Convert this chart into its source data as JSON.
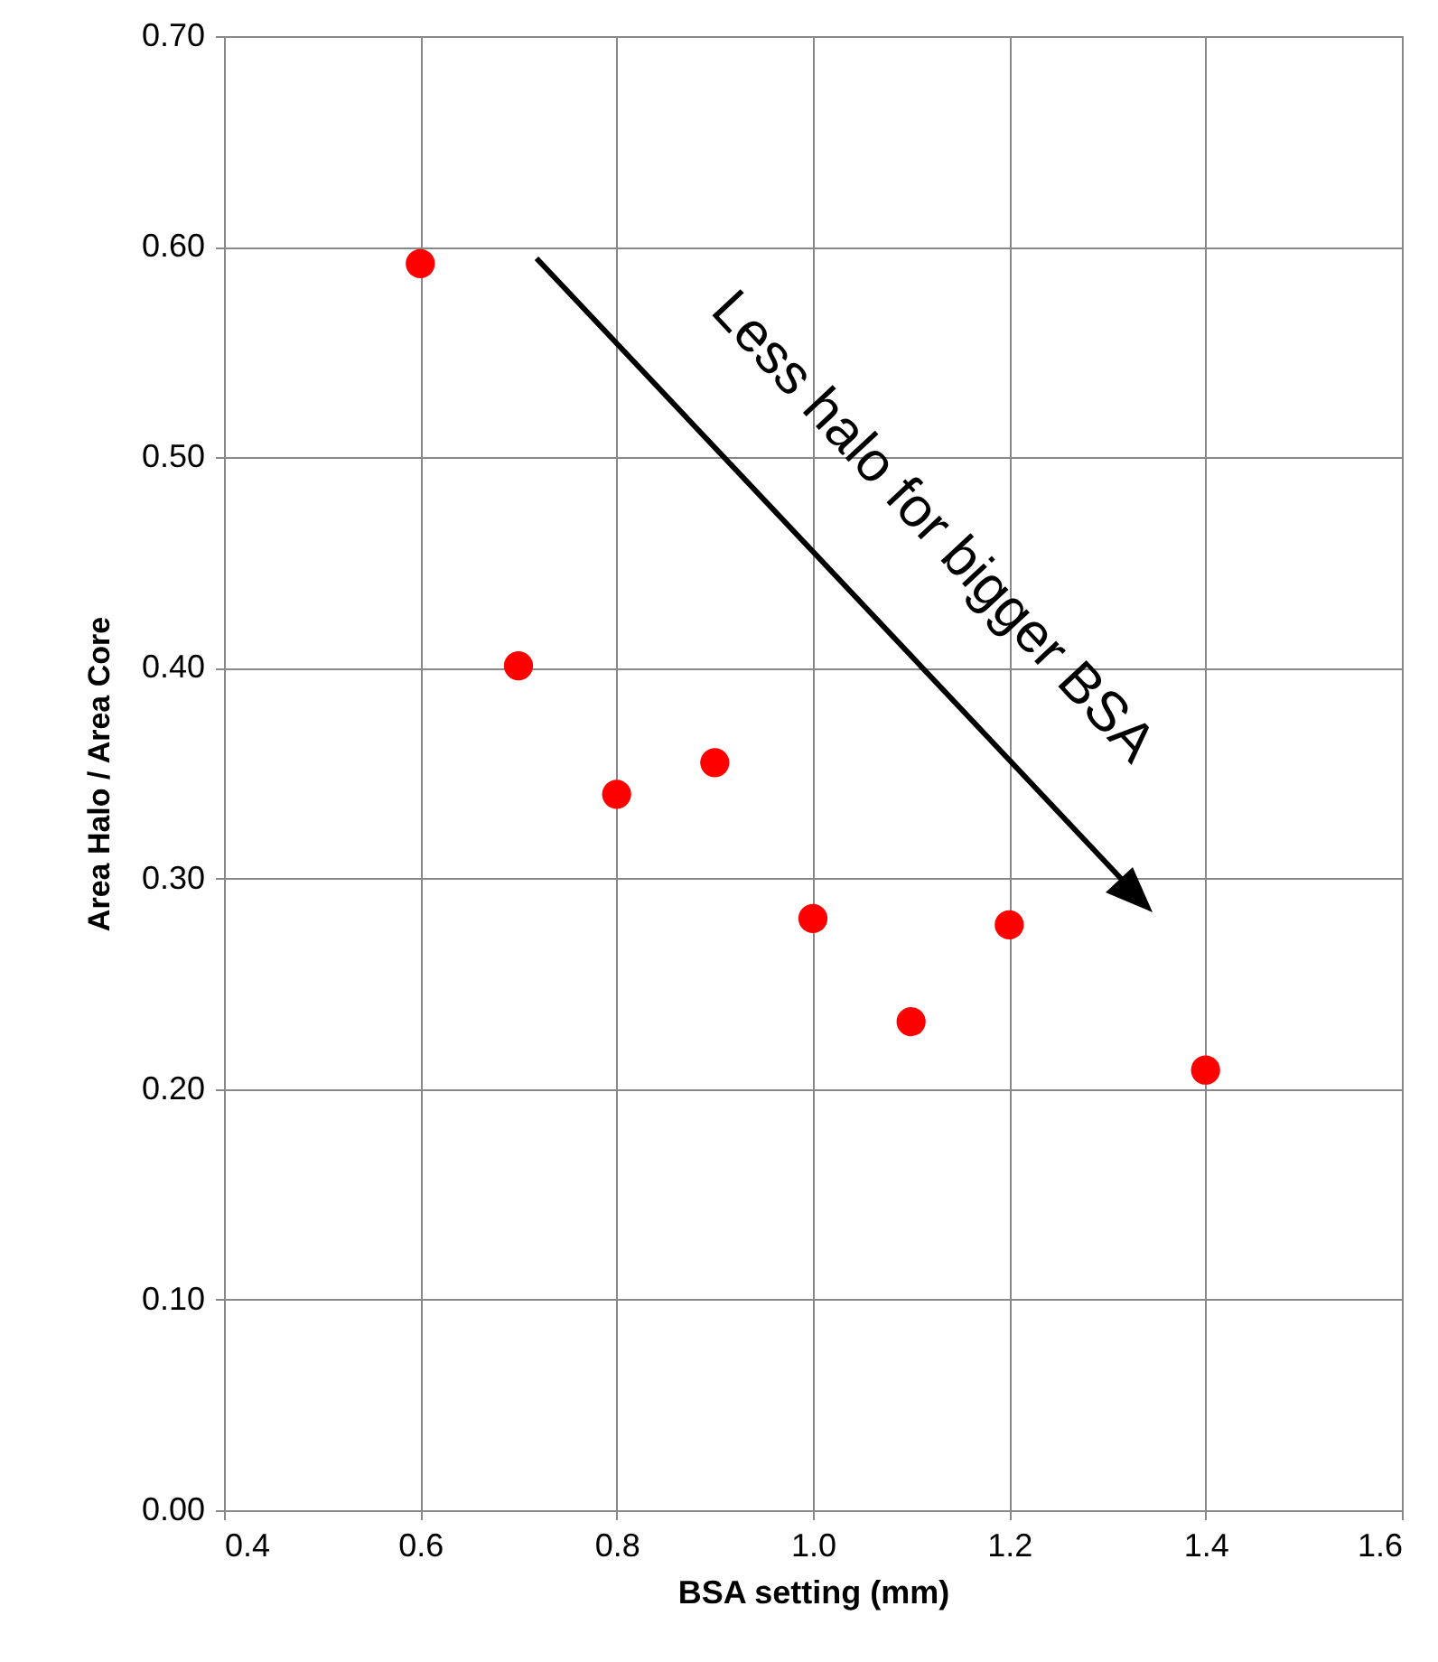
{
  "chart_data": {
    "type": "scatter",
    "xlabel": "BSA setting (mm)",
    "ylabel": "Area Halo / Area Core",
    "x": [
      0.6,
      0.7,
      0.8,
      0.9,
      1.0,
      1.1,
      1.2,
      1.4
    ],
    "series": [
      {
        "color": "#ff0000",
        "values": [
          0.592,
          0.401,
          0.34,
          0.355,
          0.281,
          0.232,
          0.278,
          0.209
        ]
      }
    ],
    "xlim": [
      0.4,
      1.6
    ],
    "xticks": [
      {
        "value": 0.4,
        "label": "0.4"
      },
      {
        "value": 0.6,
        "label": "0.6"
      },
      {
        "value": 0.8,
        "label": "0.8"
      },
      {
        "value": 1.0,
        "label": "1.0"
      },
      {
        "value": 1.2,
        "label": "1.2"
      },
      {
        "value": 1.4,
        "label": "1.4"
      },
      {
        "value": 1.6,
        "label": "1.6"
      }
    ],
    "ylim": [
      0,
      0.7
    ],
    "yticks": [
      {
        "value": 0,
        "label": "0.00"
      },
      {
        "value": 0.1,
        "label": "0.10"
      },
      {
        "value": 0.2,
        "label": "0.20"
      },
      {
        "value": 0.3,
        "label": "0.30"
      },
      {
        "value": 0.4,
        "label": "0.40"
      },
      {
        "value": 0.5,
        "label": "0.50"
      },
      {
        "value": 0.6,
        "label": "0.60"
      },
      {
        "value": 0.7,
        "label": "0.70"
      }
    ],
    "grid": true,
    "marker": "circle",
    "annotations": [
      "Less halo for bigger BSA"
    ]
  }
}
